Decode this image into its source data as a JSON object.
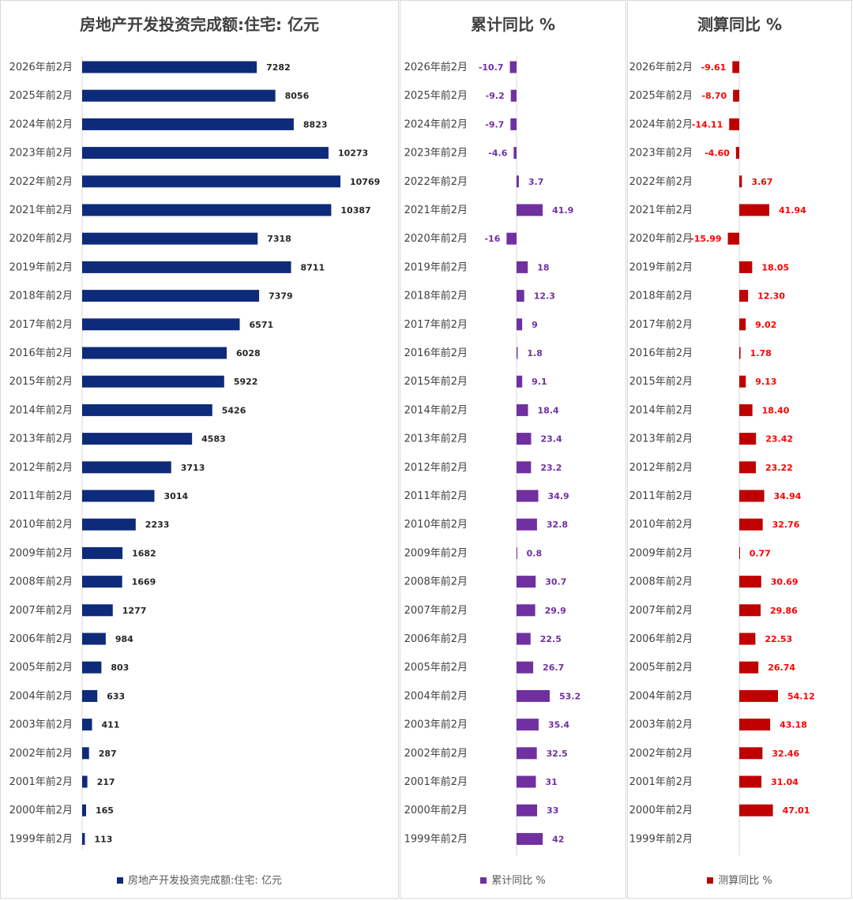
{
  "categories": [
    "2026年前2月",
    "2025年前2月",
    "2024年前2月",
    "2023年前2月",
    "2022年前2月",
    "2021年前2月",
    "2020年前2月",
    "2019年前2月",
    "2018年前2月",
    "2017年前2月",
    "2016年前2月",
    "2015年前2月",
    "2014年前2月",
    "2013年前2月",
    "2012年前2月",
    "2011年前2月",
    "2010年前2月",
    "2009年前2月",
    "2008年前2月",
    "2007年前2月",
    "2006年前2月",
    "2005年前2月",
    "2004年前2月",
    "2003年前2月",
    "2002年前2月",
    "2001年前2月",
    "2000年前2月",
    "1999年前2月"
  ],
  "chart_data": [
    {
      "type": "bar",
      "orientation": "horizontal",
      "title": "房地产开发投资完成额:住宅: 亿元",
      "series": [
        {
          "name": "房地产开发投资完成额:住宅: 亿元",
          "values": [
            7282,
            8056,
            8823,
            10273,
            10769,
            10387,
            7318,
            8711,
            7379,
            6571,
            6028,
            5922,
            5426,
            4583,
            3713,
            3014,
            2233,
            1682,
            1669,
            1277,
            984,
            803,
            633,
            411,
            287,
            217,
            165,
            113
          ],
          "labels": [
            "7282",
            "8056",
            "8823",
            "10273",
            "10769",
            "10387",
            "7318",
            "8711",
            "7379",
            "6571",
            "6028",
            "5922",
            "5426",
            "4583",
            "3713",
            "3014",
            "2233",
            "1682",
            "1669",
            "1277",
            "984",
            "803",
            "633",
            "411",
            "287",
            "217",
            "165",
            "113"
          ]
        }
      ],
      "legend_position": "bottom",
      "color": "#0e2a7a",
      "label_color": "#262626",
      "gridlines": false
    },
    {
      "type": "bar",
      "orientation": "horizontal",
      "title": "累计同比 %",
      "series": [
        {
          "name": "累计同比 %",
          "values": [
            -10.7,
            -9.2,
            -9.7,
            -4.6,
            3.7,
            41.9,
            -16,
            18,
            12.3,
            9,
            1.8,
            9.1,
            18.4,
            23.4,
            23.2,
            34.9,
            32.8,
            0.8,
            30.7,
            29.9,
            22.5,
            26.7,
            53.2,
            35.4,
            32.5,
            31,
            33,
            42
          ],
          "labels": [
            "-10.7",
            "-9.2",
            "-9.7",
            "-4.6",
            "3.7",
            "41.9",
            "-16",
            "18",
            "12.3",
            "9",
            "1.8",
            "9.1",
            "18.4",
            "23.4",
            "23.2",
            "34.9",
            "32.8",
            "0.8",
            "30.7",
            "29.9",
            "22.5",
            "26.7",
            "53.2",
            "35.4",
            "32.5",
            "31",
            "33",
            "42"
          ]
        }
      ],
      "legend_position": "bottom",
      "color": "#7030a0",
      "label_color": "#7030a0",
      "gridlines": false
    },
    {
      "type": "bar",
      "orientation": "horizontal",
      "title": "测算同比 %",
      "series": [
        {
          "name": "测算同比 %",
          "values": [
            -9.61,
            -8.7,
            -14.11,
            -4.6,
            3.67,
            41.94,
            -15.99,
            18.05,
            12.3,
            9.02,
            1.78,
            9.13,
            18.4,
            23.42,
            23.22,
            34.94,
            32.76,
            0.77,
            30.69,
            29.86,
            22.53,
            26.74,
            54.12,
            43.18,
            32.46,
            31.04,
            47.01,
            null
          ],
          "labels": [
            "-9.61",
            "-8.70",
            "-14.11",
            "-4.60",
            "3.67",
            "41.94",
            "-15.99",
            "18.05",
            "12.30",
            "9.02",
            "1.78",
            "9.13",
            "18.40",
            "23.42",
            "23.22",
            "34.94",
            "32.76",
            "0.77",
            "30.69",
            "29.86",
            "22.53",
            "26.74",
            "54.12",
            "43.18",
            "32.46",
            "31.04",
            "47.01",
            ""
          ]
        }
      ],
      "legend_position": "bottom",
      "color": "#c00000",
      "label_color": "#ff0000",
      "gridlines": false
    }
  ]
}
